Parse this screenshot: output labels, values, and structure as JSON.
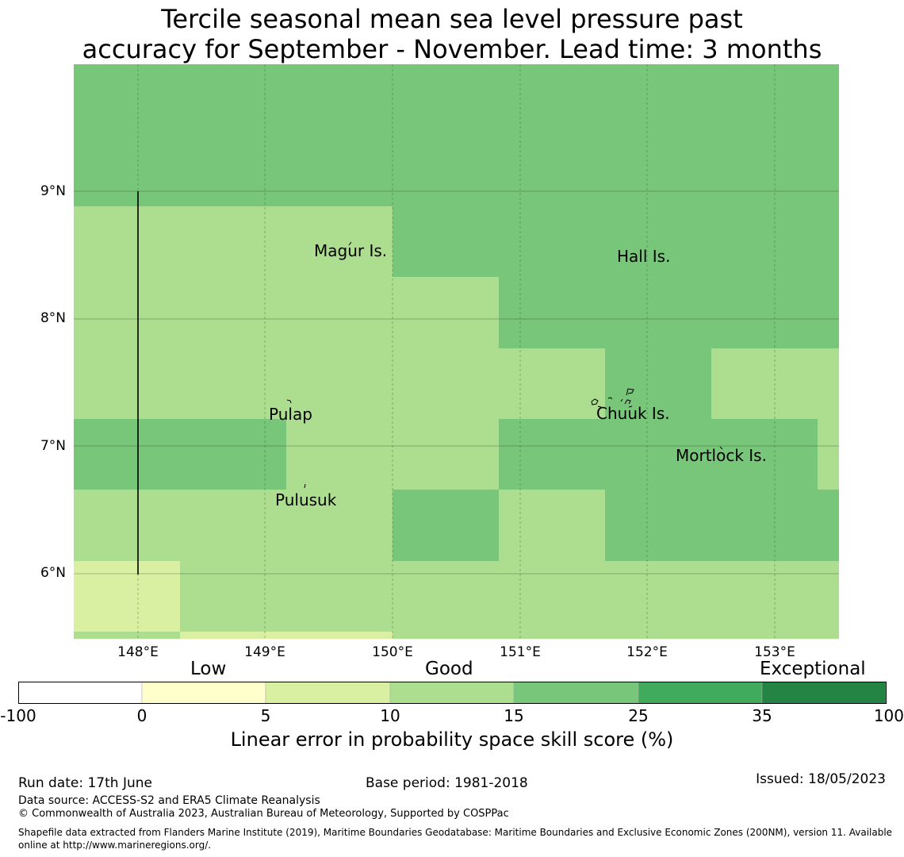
{
  "title_line1": "Tercile seasonal mean sea level pressure past",
  "title_line2": "accuracy for September - November. Lead time: 3 months",
  "y_ticks": [
    "9°N",
    "8°N",
    "7°N",
    "6°N"
  ],
  "x_ticks": [
    "148°E",
    "149°E",
    "150°E",
    "151°E",
    "152°E",
    "153°E"
  ],
  "places": [
    {
      "name": "Magur Is."
    },
    {
      "name": "Hall Is."
    },
    {
      "name": "Pulap"
    },
    {
      "name": "Chuuk Is."
    },
    {
      "name": "Mortlock Is."
    },
    {
      "name": "Pulusuk"
    }
  ],
  "categories": {
    "low": "Low",
    "good": "Good",
    "exceptional": "Exceptional"
  },
  "colorbar": {
    "labels": [
      "-100",
      "0",
      "5",
      "10",
      "15",
      "25",
      "35",
      "100"
    ],
    "colors": [
      "#ffffff",
      "#ffffcc",
      "#d9f0a3",
      "#addd8e",
      "#78c679",
      "#41ab5d",
      "#238443"
    ],
    "title": "Linear error in probability space skill score (%)"
  },
  "legend_colors": {
    "c0_5": "#ffffcc",
    "c5_10": "#d9f0a3",
    "c10_15": "#addd8e",
    "c15_25": "#78c679"
  },
  "footer": {
    "run_date": "Run date: 17th June",
    "base_period": "Base period: 1981-2018",
    "issued": "Issued: 18/05/2023",
    "data_source": "Data source: ACCESS-S2 and ERA5 Climate Reanalysis",
    "copyright": "© Commonwealth of Australia 2023, Australian Bureau of Meteorology, Supported by COSPPac",
    "shapefile": "Shapefile data extracted from Flanders Marine Institute (2019), Maritime Boundaries Geodatabase: Maritime Boundaries and Exclusive Economic Zones (200NM), version 11. Available online at http://www.marineregions.org/."
  }
}
